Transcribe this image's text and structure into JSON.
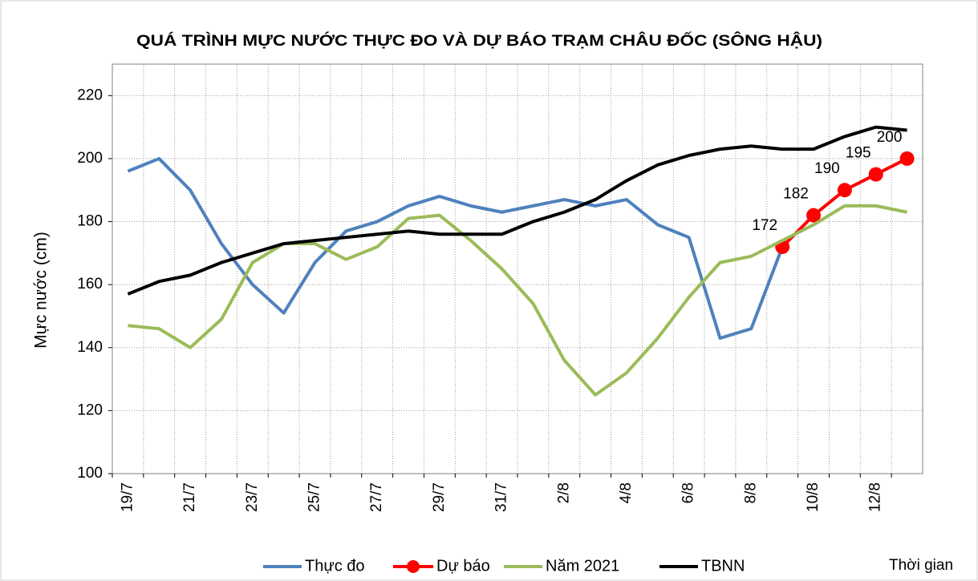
{
  "chart_data": {
    "type": "line",
    "title": "QUÁ TRÌNH MỰC NƯỚC THỰC ĐO VÀ DỰ BÁO TRẠM CHÂU ĐỐC (SÔNG HẬU)",
    "y_label": "Mực nước (cm)",
    "x_label": "Thời gian",
    "categories": [
      "19/7",
      null,
      "21/7",
      null,
      "23/7",
      null,
      "25/7",
      null,
      "27/7",
      null,
      "29/7",
      null,
      "31/7",
      null,
      "2/8",
      null,
      "4/8",
      null,
      "6/8",
      null,
      "8/8",
      null,
      "10/8",
      null,
      "12/8",
      null
    ],
    "series": [
      {
        "name": "Thực đo",
        "color": "#4f81bd",
        "values": [
          196,
          200,
          190,
          173,
          160,
          151,
          167,
          177,
          180,
          185,
          188,
          185,
          183,
          185,
          187,
          185,
          187,
          179,
          175,
          143,
          146,
          172,
          null,
          null,
          null,
          null
        ]
      },
      {
        "name": "Dự báo",
        "color": "#ff0000",
        "markers": true,
        "data_labels": true,
        "values": [
          null,
          null,
          null,
          null,
          null,
          null,
          null,
          null,
          null,
          null,
          null,
          null,
          null,
          null,
          null,
          null,
          null,
          null,
          null,
          null,
          null,
          172,
          182,
          190,
          195,
          200
        ]
      },
      {
        "name": "Năm 2021",
        "color": "#9bbb59",
        "values": [
          147,
          146,
          140,
          149,
          167,
          173,
          173,
          168,
          172,
          181,
          182,
          174,
          165,
          154,
          136,
          125,
          132,
          143,
          156,
          167,
          169,
          174,
          179,
          185,
          185,
          183
        ]
      },
      {
        "name": "TBNN",
        "color": "#000000",
        "values": [
          157,
          161,
          163,
          167,
          170,
          173,
          174,
          175,
          176,
          177,
          176,
          176,
          176,
          180,
          183,
          187,
          193,
          198,
          201,
          203,
          204,
          203,
          203,
          207,
          210,
          209
        ]
      }
    ],
    "ylim": [
      100,
      230
    ],
    "yticks": [
      100,
      120,
      140,
      160,
      180,
      200,
      220
    ],
    "grid": true,
    "legend": "bottom"
  }
}
